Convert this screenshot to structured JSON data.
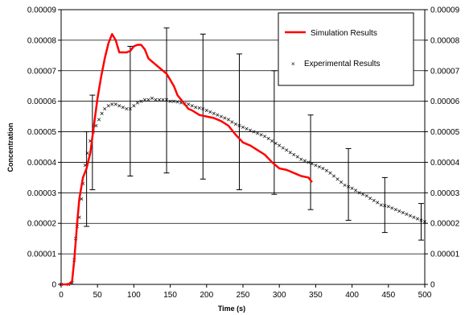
{
  "chart_data": {
    "type": "line",
    "title": "",
    "xlabel": "Time (s)",
    "ylabel": "Concentration",
    "xlim": [
      0,
      500
    ],
    "ylim": [
      0,
      9e-05
    ],
    "x_ticks": [
      "0",
      "50",
      "100",
      "150",
      "200",
      "250",
      "300",
      "350",
      "400",
      "450",
      "500"
    ],
    "y_ticks_left": [
      "0",
      "0.00001",
      "0.00002",
      "0.00003",
      "0.00004",
      "0.00005",
      "0.00006",
      "0.00007",
      "0.00008",
      "0.00009"
    ],
    "y_ticks_right": [
      "0",
      "0.00001",
      "0.00002",
      "0.00003",
      "0.00004",
      "0.00005",
      "0.00006",
      "0.00007",
      "0.00008",
      "0.00009"
    ],
    "grid": "horizontal",
    "legend_position": "top-right",
    "series": [
      {
        "name": "Simulation Results",
        "kind": "line",
        "color": "#ff0000",
        "x": [
          0,
          10,
          15,
          18,
          22,
          25,
          30,
          35,
          40,
          45,
          50,
          55,
          60,
          65,
          70,
          75,
          80,
          85,
          90,
          95,
          100,
          105,
          110,
          115,
          120,
          125,
          130,
          135,
          140,
          145,
          150,
          155,
          160,
          165,
          170,
          175,
          180,
          190,
          200,
          210,
          220,
          230,
          240,
          250,
          260,
          270,
          280,
          290,
          300,
          310,
          320,
          330,
          340,
          345
        ],
        "y": [
          0,
          0,
          1e-06,
          8e-06,
          2e-05,
          2.8e-05,
          3.5e-05,
          3.8e-05,
          4.3e-05,
          5.2e-05,
          6.1e-05,
          6.8e-05,
          7.4e-05,
          7.9e-05,
          8.2e-05,
          8e-05,
          7.6e-05,
          7.6e-05,
          7.6e-05,
          7.65e-05,
          7.8e-05,
          7.85e-05,
          7.85e-05,
          7.7e-05,
          7.4e-05,
          7.3e-05,
          7.2e-05,
          7.1e-05,
          7e-05,
          6.9e-05,
          6.7e-05,
          6.5e-05,
          6.2e-05,
          6.05e-05,
          5.9e-05,
          5.75e-05,
          5.7e-05,
          5.55e-05,
          5.5e-05,
          5.45e-05,
          5.35e-05,
          5.2e-05,
          4.9e-05,
          4.65e-05,
          4.55e-05,
          4.4e-05,
          4.25e-05,
          4e-05,
          3.8e-05,
          3.75e-05,
          3.65e-05,
          3.55e-05,
          3.5e-05,
          3.35e-05
        ]
      },
      {
        "name": "Experimental Results",
        "kind": "markers",
        "marker": "x",
        "color": "#000000",
        "x": [
          0,
          10,
          15,
          18,
          20,
          22,
          25,
          28,
          30,
          33,
          36,
          40,
          44,
          48,
          52,
          56,
          60,
          65,
          70,
          75,
          80,
          85,
          90,
          95,
          100,
          105,
          110,
          115,
          120,
          125,
          130,
          135,
          140,
          145,
          150,
          155,
          160,
          165,
          170,
          175,
          180,
          185,
          190,
          195,
          200,
          205,
          210,
          215,
          220,
          225,
          230,
          235,
          240,
          245,
          250,
          255,
          260,
          265,
          270,
          275,
          280,
          285,
          290,
          295,
          300,
          305,
          310,
          315,
          320,
          325,
          330,
          335,
          340,
          345,
          350,
          355,
          360,
          365,
          370,
          375,
          380,
          385,
          390,
          395,
          400,
          405,
          410,
          415,
          420,
          425,
          430,
          435,
          440,
          445,
          450,
          455,
          460,
          465,
          470,
          475,
          480,
          485,
          490,
          495,
          500
        ],
        "y": [
          0,
          0,
          5e-07,
          8e-06,
          1.5e-05,
          1.9e-05,
          2.2e-05,
          2.8e-05,
          3.3e-05,
          3.9e-05,
          4.3e-05,
          4.7e-05,
          5e-05,
          5.2e-05,
          5.4e-05,
          5.6e-05,
          5.75e-05,
          5.85e-05,
          5.9e-05,
          5.9e-05,
          5.85e-05,
          5.8e-05,
          5.75e-05,
          5.75e-05,
          5.85e-05,
          5.95e-05,
          6e-05,
          6.05e-05,
          6.05e-05,
          6.1e-05,
          6.05e-05,
          6.05e-05,
          6.05e-05,
          6.05e-05,
          6e-05,
          6e-05,
          5.98e-05,
          5.95e-05,
          5.92e-05,
          5.9e-05,
          5.85e-05,
          5.8e-05,
          5.78e-05,
          5.75e-05,
          5.7e-05,
          5.65e-05,
          5.6e-05,
          5.55e-05,
          5.5e-05,
          5.45e-05,
          5.4e-05,
          5.32e-05,
          5.25e-05,
          5.2e-05,
          5.15e-05,
          5.1e-05,
          5.05e-05,
          5e-05,
          4.95e-05,
          4.9e-05,
          4.85e-05,
          4.78e-05,
          4.7e-05,
          4.62e-05,
          4.55e-05,
          4.47e-05,
          4.4e-05,
          4.32e-05,
          4.25e-05,
          4.18e-05,
          4.1e-05,
          4.05e-05,
          4e-05,
          3.95e-05,
          3.9e-05,
          3.85e-05,
          3.8e-05,
          3.73e-05,
          3.65e-05,
          3.55e-05,
          3.45e-05,
          3.35e-05,
          3.25e-05,
          3.2e-05,
          3.15e-05,
          3.08e-05,
          3e-05,
          2.95e-05,
          2.9e-05,
          2.82e-05,
          2.75e-05,
          2.68e-05,
          2.6e-05,
          2.58e-05,
          2.55e-05,
          2.5e-05,
          2.45e-05,
          2.4e-05,
          2.35e-05,
          2.3e-05,
          2.25e-05,
          2.2e-05,
          2.15e-05,
          2.1e-05,
          2.05e-05
        ]
      }
    ],
    "error_bars": {
      "series": "Experimental Results",
      "x": [
        35,
        43,
        95,
        145,
        195,
        245,
        293,
        343,
        395,
        445,
        495
      ],
      "low": [
        1.9e-05,
        3.1e-05,
        3.55e-05,
        3.65e-05,
        3.45e-05,
        3.1e-05,
        2.95e-05,
        2.45e-05,
        2.1e-05,
        1.7e-05,
        1.45e-05
      ],
      "high": [
        5e-05,
        6.2e-05,
        7.8e-05,
        8.4e-05,
        8.2e-05,
        7.55e-05,
        7e-05,
        5.55e-05,
        4.45e-05,
        3.5e-05,
        2.65e-05
      ]
    }
  }
}
